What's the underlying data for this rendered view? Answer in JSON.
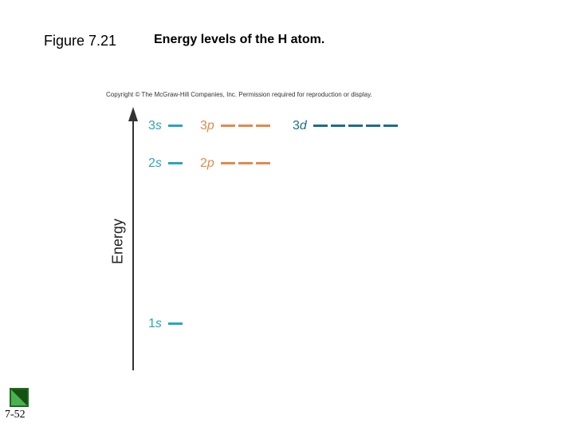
{
  "header": {
    "figure_label": "Figure 7.21",
    "title": "Energy levels of the H atom."
  },
  "diagram": {
    "copyright": "Copyright © The McGraw-Hill Companies, Inc. Permission required for reproduction or display.",
    "axis_label": "Energy",
    "levels": [
      {
        "n": "3",
        "l": "s",
        "orbitals": 1,
        "color": "#2ba3c4"
      },
      {
        "n": "3",
        "l": "p",
        "orbitals": 3,
        "color": "#e08a4f"
      },
      {
        "n": "3",
        "l": "d",
        "orbitals": 5,
        "color": "#1d6e86"
      },
      {
        "n": "2",
        "l": "s",
        "orbitals": 1,
        "color": "#2ba3c4"
      },
      {
        "n": "2",
        "l": "p",
        "orbitals": 3,
        "color": "#e08a4f"
      },
      {
        "n": "1",
        "l": "s",
        "orbitals": 1,
        "color": "#2ba3c4"
      }
    ]
  },
  "footer": {
    "slide_number": "7-52",
    "nav_icon": "green-nav-triangle-icon"
  }
}
